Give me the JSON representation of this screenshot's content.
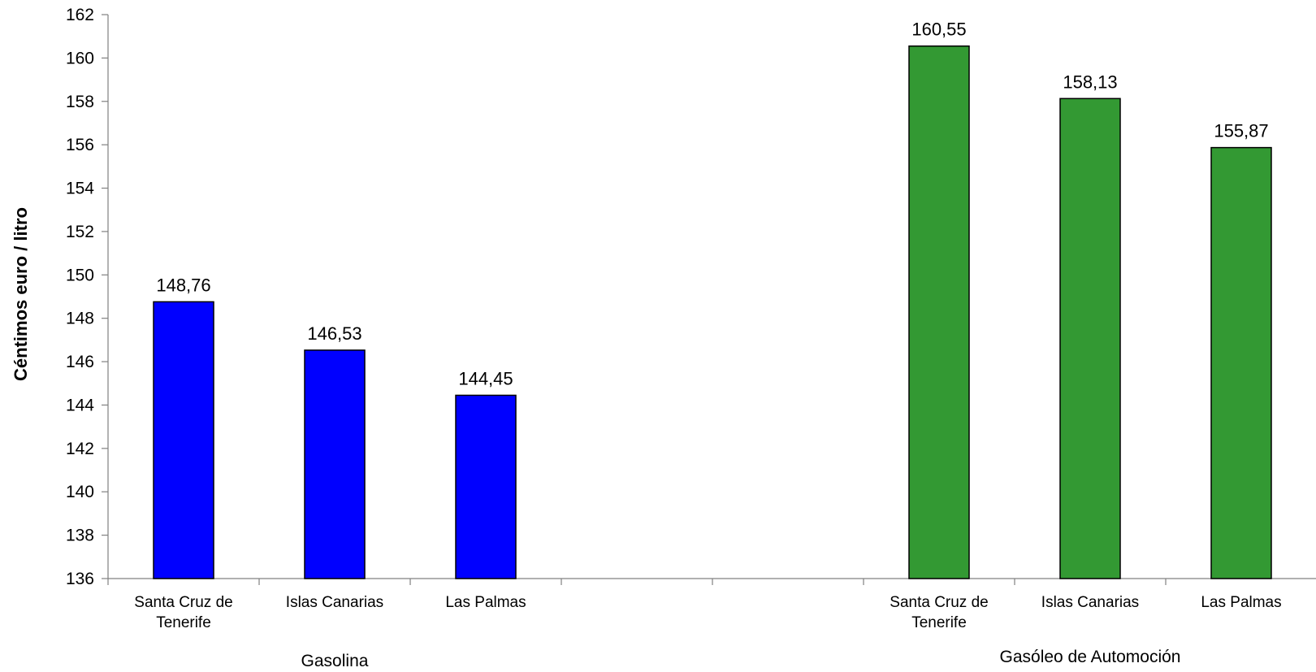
{
  "chart_data": {
    "type": "bar",
    "ylabel": "Céntimos euro / litro",
    "ylim": [
      136,
      162
    ],
    "yticks": [
      136,
      138,
      140,
      142,
      144,
      146,
      148,
      150,
      152,
      154,
      156,
      158,
      160,
      162
    ],
    "grid": false,
    "legend": "none",
    "groups": [
      {
        "name": "Gasolina",
        "color": "#0000ff",
        "categories": [
          "Santa Cruz de Tenerife",
          "Islas Canarias",
          "Las Palmas"
        ],
        "category_lines": [
          [
            "Santa Cruz de",
            "Tenerife"
          ],
          [
            "Islas Canarias"
          ],
          [
            "Las Palmas"
          ]
        ],
        "values": [
          148.76,
          146.53,
          144.45
        ],
        "value_labels": [
          "148,76",
          "146,53",
          "144,45"
        ]
      },
      {
        "name": "Gasóleo de Automoción",
        "color": "#339933",
        "categories": [
          "Santa Cruz de Tenerife",
          "Islas Canarias",
          "Las Palmas"
        ],
        "category_lines": [
          [
            "Santa Cruz de",
            "Tenerife"
          ],
          [
            "Islas Canarias"
          ],
          [
            "Las Palmas"
          ]
        ],
        "values": [
          160.55,
          158.13,
          155.87
        ],
        "value_labels": [
          "160,55",
          "158,13",
          "155,87"
        ]
      }
    ]
  }
}
